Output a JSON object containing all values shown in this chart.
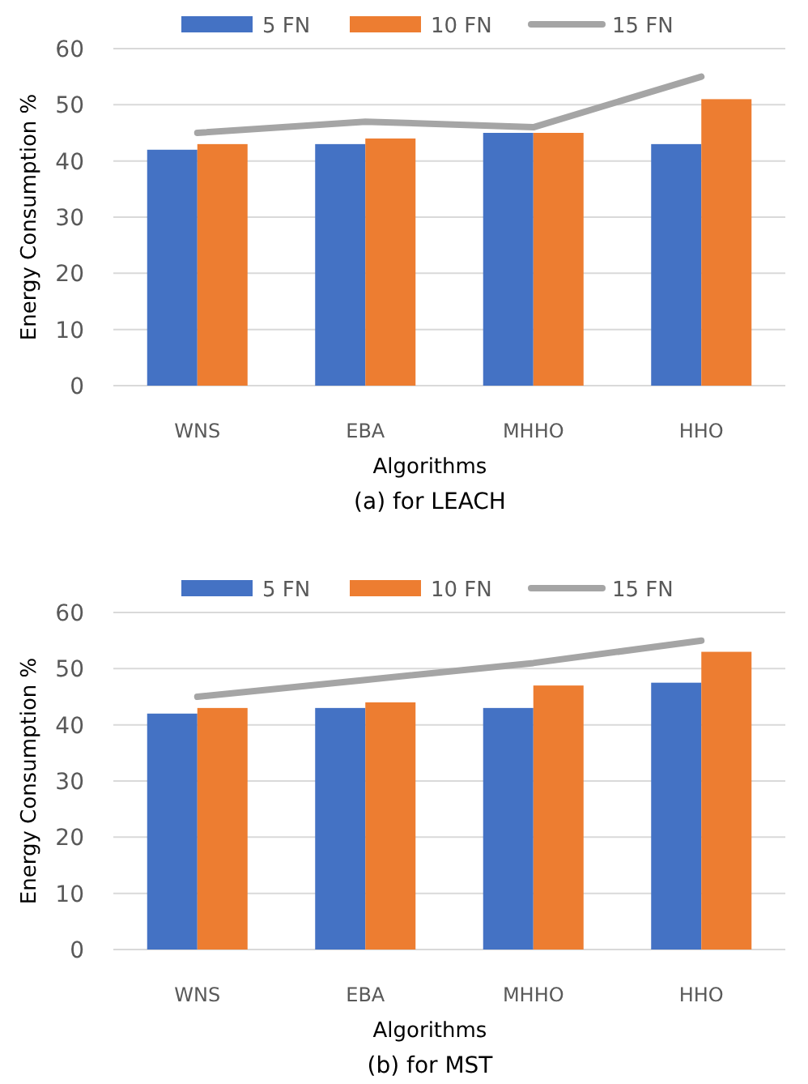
{
  "chart_data": [
    {
      "type": "bar",
      "title": "(a) for LEACH",
      "xlabel": "Algorithms",
      "ylabel": "Energy Consumption %",
      "categories": [
        "WNS",
        "EBA",
        "MHHO",
        "HHO"
      ],
      "series": [
        {
          "name": "5 FN",
          "color": "#4472c4",
          "values": [
            42,
            43,
            45,
            43
          ]
        },
        {
          "name": "10 FN",
          "color": "#ed7d31",
          "values": [
            43,
            44,
            45,
            51
          ]
        },
        {
          "name": "15 FN",
          "type": "line",
          "color": "#a5a5a5",
          "values": [
            45,
            47,
            46,
            55
          ]
        }
      ],
      "ylim": [
        0,
        60
      ],
      "yticks": [
        0,
        10,
        20,
        30,
        40,
        50,
        60
      ],
      "grid": "y",
      "legend": "top",
      "marker": "none"
    },
    {
      "type": "bar",
      "title": "(b) for MST",
      "xlabel": "Algorithms",
      "ylabel": "Energy Consumption %",
      "categories": [
        "WNS",
        "EBA",
        "MHHO",
        "HHO"
      ],
      "series": [
        {
          "name": "5 FN",
          "color": "#4472c4",
          "values": [
            42,
            43,
            43,
            47.5
          ]
        },
        {
          "name": "10 FN",
          "color": "#ed7d31",
          "values": [
            43,
            44,
            47,
            53
          ]
        },
        {
          "name": "15 FN",
          "type": "line",
          "color": "#a5a5a5",
          "values": [
            45,
            48,
            51,
            55
          ]
        }
      ],
      "ylim": [
        0,
        60
      ],
      "yticks": [
        0,
        10,
        20,
        30,
        40,
        50,
        60
      ],
      "grid": "y",
      "legend": "top",
      "marker": "none"
    }
  ]
}
